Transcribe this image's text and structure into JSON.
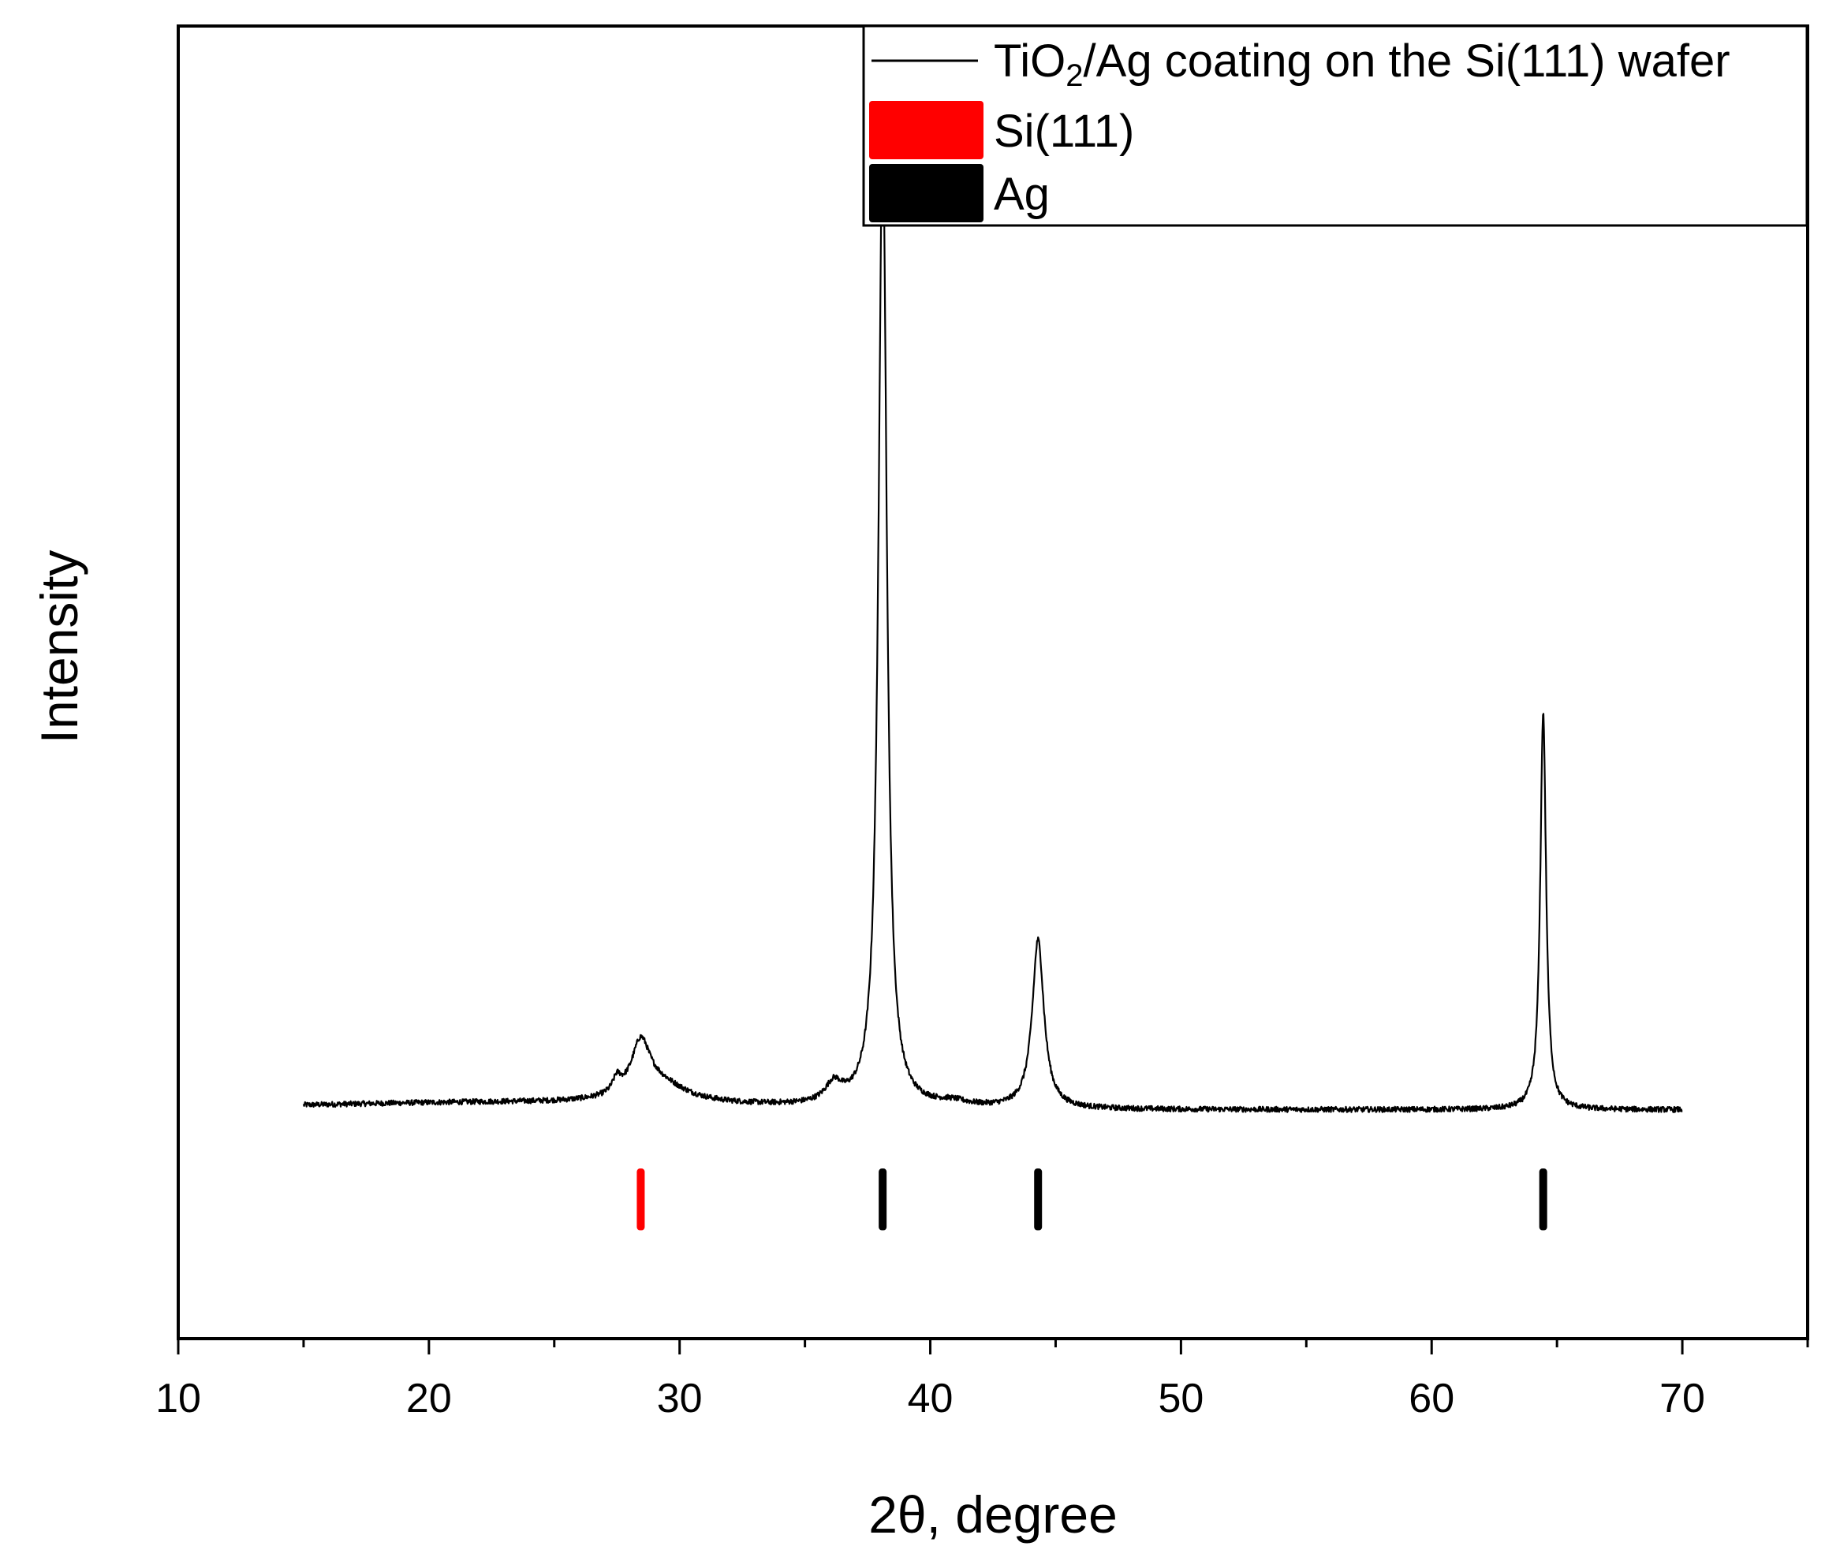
{
  "chart_data": {
    "type": "line",
    "xlabel": "2θ, degree",
    "ylabel": "Intensity",
    "xlim": [
      10,
      75
    ],
    "ylim": [
      -9,
      100
    ],
    "x_major_ticks": [
      10,
      20,
      30,
      40,
      50,
      60,
      70
    ],
    "x_tick_labels": [
      "10",
      "20",
      "30",
      "40",
      "50",
      "60",
      "70"
    ],
    "x_minor_ticks": [
      15,
      25,
      35,
      45,
      55,
      65,
      75
    ],
    "y_ticks_shown": false,
    "grid": false,
    "legend": {
      "placement": "top-right",
      "entries": [
        {
          "label_parts": [
            "TiO",
            "2",
            "/Ag coating on the Si(111) wafer"
          ],
          "style": "line",
          "color": "#000000"
        },
        {
          "label": "Si(111)",
          "style": "block",
          "color": "#ff0000"
        },
        {
          "label": "Ag",
          "style": "block",
          "color": "#000000"
        }
      ]
    },
    "series": [
      {
        "name": "TiO2/Ag coating on the Si(111) wafer",
        "color": "#000000",
        "x_range": [
          15,
          70
        ],
        "baseline": 10,
        "peaks": [
          {
            "center": 27.5,
            "height": 1.2,
            "width": 0.2
          },
          {
            "center": 28.45,
            "height": 4.3,
            "width": 0.45
          },
          {
            "center": 29.2,
            "height": 1.6,
            "width": 1.3
          },
          {
            "center": 36.15,
            "height": 1.6,
            "width": 0.4
          },
          {
            "center": 38.1,
            "height": 81.0,
            "width": 0.2
          },
          {
            "center": 40.9,
            "height": 0.4,
            "width": 0.8
          },
          {
            "center": 44.3,
            "height": 14.0,
            "width": 0.28
          },
          {
            "center": 64.45,
            "height": 33.0,
            "width": 0.14
          }
        ],
        "points": [
          [
            15.0,
            10.0
          ],
          [
            17.0,
            10.4
          ],
          [
            19.0,
            10.5
          ],
          [
            21.0,
            10.4
          ],
          [
            23.0,
            10.3
          ],
          [
            25.0,
            10.5
          ],
          [
            26.5,
            11.0
          ],
          [
            27.5,
            12.2
          ],
          [
            28.0,
            13.3
          ],
          [
            28.45,
            15.0
          ],
          [
            29.0,
            13.4
          ],
          [
            30.0,
            11.6
          ],
          [
            31.0,
            10.7
          ],
          [
            32.0,
            10.3
          ],
          [
            33.5,
            10.1
          ],
          [
            35.0,
            10.4
          ],
          [
            36.15,
            11.8
          ],
          [
            36.6,
            10.8
          ],
          [
            37.2,
            11.2
          ],
          [
            37.7,
            20.0
          ],
          [
            38.0,
            70.0
          ],
          [
            38.1,
            91.0
          ],
          [
            38.3,
            60.0
          ],
          [
            38.6,
            18.0
          ],
          [
            39.2,
            11.6
          ],
          [
            40.0,
            10.6
          ],
          [
            40.9,
            10.7
          ],
          [
            42.0,
            10.6
          ],
          [
            43.5,
            12.5
          ],
          [
            44.0,
            17.0
          ],
          [
            44.3,
            24.0
          ],
          [
            44.6,
            17.0
          ],
          [
            45.2,
            12.0
          ],
          [
            46.0,
            10.7
          ],
          [
            48.0,
            10.4
          ],
          [
            52.0,
            10.2
          ],
          [
            56.0,
            10.1
          ],
          [
            60.0,
            10.2
          ],
          [
            62.5,
            10.4
          ],
          [
            63.8,
            12.0
          ],
          [
            64.2,
            22.0
          ],
          [
            64.45,
            43.0
          ],
          [
            64.7,
            25.0
          ],
          [
            65.0,
            13.5
          ],
          [
            65.8,
            10.6
          ],
          [
            67.0,
            10.3
          ],
          [
            70.0,
            10.0
          ]
        ]
      }
    ],
    "reference_markers": [
      {
        "name": "Si(111)",
        "color": "#ff0000",
        "positions": [
          28.45
        ],
        "value": 5
      },
      {
        "name": "Ag",
        "color": "#000000",
        "positions": [
          38.1,
          44.3,
          64.45
        ],
        "value": 5
      }
    ]
  }
}
